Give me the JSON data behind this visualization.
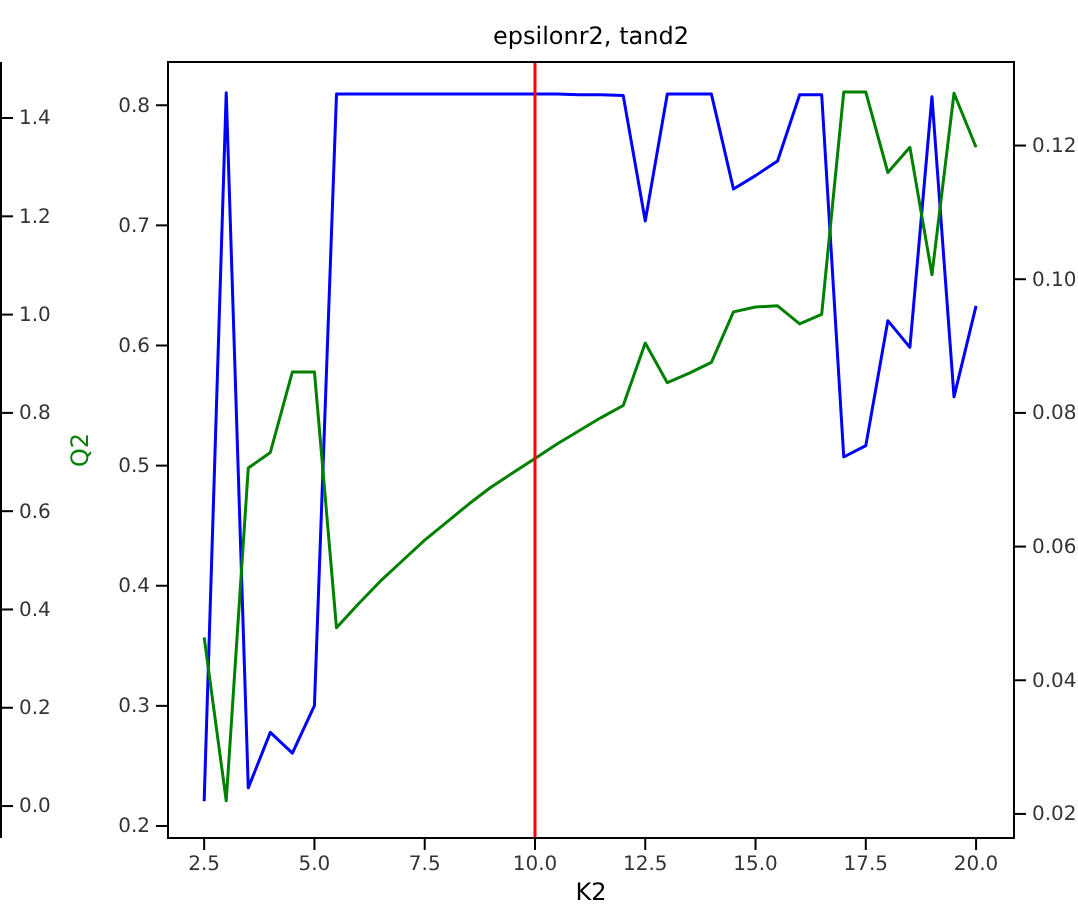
{
  "chart_data": {
    "type": "line",
    "title": "epsilonr2, tand2",
    "xlabel": "K2",
    "ylabel": "Q2",
    "x": [
      2.5,
      3,
      3.5,
      4,
      4.5,
      5,
      5.5,
      6,
      6.5,
      7,
      7.5,
      8,
      8.5,
      9,
      9.5,
      10,
      10.5,
      11,
      11.5,
      12,
      12.5,
      13,
      13.5,
      14,
      14.5,
      15,
      15.5,
      16,
      16.5,
      17,
      17.5,
      18,
      18.5,
      19,
      19.5,
      20
    ],
    "series": [
      {
        "color": "#0000ff",
        "axis": "y2",
        "values": [
          0.0219,
          0.1279,
          0.0239,
          0.0322,
          0.0291,
          0.0362,
          0.1277,
          0.1277,
          0.1277,
          0.1277,
          0.1277,
          0.1277,
          0.1277,
          0.1277,
          0.1277,
          0.1277,
          0.1277,
          0.1276,
          0.1276,
          0.1275,
          0.1087,
          0.1277,
          0.1277,
          0.1277,
          0.1135,
          0.1155,
          0.1177,
          0.1276,
          0.1276,
          0.0734,
          0.0751,
          0.0938,
          0.0898,
          0.1273,
          0.0824,
          0.096
        ]
      },
      {
        "color": "#008000",
        "values": [
          0.357,
          0.221,
          0.498,
          0.511,
          0.578,
          0.578,
          0.365,
          0.385,
          0.404,
          0.421,
          0.438,
          0.453,
          0.468,
          0.482,
          0.494,
          0.506,
          0.518,
          0.529,
          0.54,
          0.55,
          0.602,
          0.569,
          0.577,
          0.586,
          0.628,
          0.632,
          0.633,
          0.618,
          0.626,
          0.811,
          0.811,
          0.744,
          0.765,
          0.659,
          0.81,
          0.765
        ]
      }
    ],
    "xlim": [
      1.68,
      20.86
    ],
    "xticks": [
      2.5,
      {
        "value": 5,
        "label": "5.0"
      },
      7.5,
      {
        "value": 10,
        "label": "10.0"
      },
      12.5,
      {
        "value": 15,
        "label": "15.0"
      },
      17.5,
      {
        "value": 20,
        "label": "20.0"
      }
    ],
    "ylim": [
      0.19,
      0.836
    ],
    "yticks": [
      0.2,
      0.3,
      0.4,
      0.5,
      0.6,
      0.7,
      0.8
    ],
    "y2lim": [
      0.0164,
      0.1325
    ],
    "y2ticks": [
      0.02,
      0.04,
      0.06,
      0.08,
      {
        "value": 0.1,
        "label": "0.10"
      },
      0.12
    ],
    "y3lim": [
      -0.065,
      1.514
    ],
    "y3ticks": [
      {
        "value": 0,
        "label": "0.0"
      },
      0.2,
      0.4,
      0.6,
      0.8,
      {
        "value": 1,
        "label": "1.0"
      },
      1.2,
      1.4
    ],
    "ref_lines": [
      {
        "axis": "x",
        "value": 10,
        "color": "#ff0000"
      }
    ],
    "grid": false
  }
}
